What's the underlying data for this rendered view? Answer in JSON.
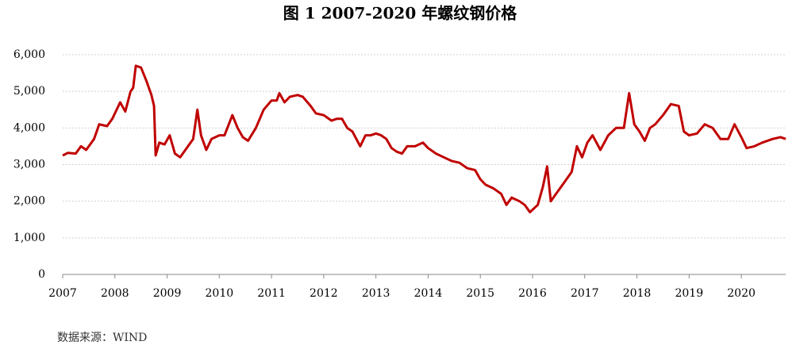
{
  "chart_data": {
    "type": "line",
    "title": "图 1 2007-2020 年螺纹钢价格",
    "source": "数据来源：WIND",
    "x": [
      2007.0,
      2007.1,
      2007.25,
      2007.35,
      2007.45,
      2007.6,
      2007.7,
      2007.85,
      2007.95,
      2008.0,
      2008.1,
      2008.2,
      2008.3,
      2008.35,
      2008.4,
      2008.5,
      2008.6,
      2008.7,
      2008.75,
      2008.78,
      2008.85,
      2008.95,
      2009.05,
      2009.15,
      2009.25,
      2009.35,
      2009.5,
      2009.58,
      2009.65,
      2009.75,
      2009.85,
      2010.0,
      2010.1,
      2010.25,
      2010.35,
      2010.45,
      2010.55,
      2010.7,
      2010.85,
      2011.0,
      2011.1,
      2011.15,
      2011.25,
      2011.35,
      2011.5,
      2011.6,
      2011.75,
      2011.85,
      2012.0,
      2012.15,
      2012.25,
      2012.35,
      2012.45,
      2012.55,
      2012.7,
      2012.8,
      2012.9,
      2013.0,
      2013.1,
      2013.2,
      2013.3,
      2013.4,
      2013.5,
      2013.6,
      2013.75,
      2013.9,
      2014.0,
      2014.15,
      2014.3,
      2014.45,
      2014.6,
      2014.75,
      2014.9,
      2015.0,
      2015.1,
      2015.25,
      2015.4,
      2015.5,
      2015.6,
      2015.75,
      2015.85,
      2015.95,
      2016.1,
      2016.2,
      2016.28,
      2016.35,
      2016.45,
      2016.6,
      2016.75,
      2016.85,
      2016.95,
      2017.05,
      2017.15,
      2017.3,
      2017.45,
      2017.6,
      2017.75,
      2017.85,
      2017.95,
      2018.05,
      2018.15,
      2018.25,
      2018.35,
      2018.5,
      2018.65,
      2018.8,
      2018.9,
      2019.0,
      2019.15,
      2019.3,
      2019.45,
      2019.6,
      2019.75,
      2019.87,
      2020.0,
      2020.1,
      2020.25,
      2020.4,
      2020.6,
      2020.75,
      2020.85
    ],
    "series": [
      {
        "name": "螺纹钢价格",
        "color": "#c00000",
        "values": [
          3250,
          3320,
          3300,
          3500,
          3400,
          3700,
          4100,
          4050,
          4250,
          4400,
          4700,
          4450,
          5000,
          5100,
          5700,
          5650,
          5300,
          4900,
          4600,
          3250,
          3600,
          3550,
          3800,
          3300,
          3200,
          3400,
          3700,
          4500,
          3800,
          3400,
          3700,
          3800,
          3800,
          4350,
          4000,
          3750,
          3650,
          4000,
          4500,
          4750,
          4750,
          4950,
          4700,
          4850,
          4900,
          4850,
          4600,
          4400,
          4350,
          4200,
          4250,
          4250,
          4000,
          3900,
          3500,
          3800,
          3800,
          3850,
          3800,
          3700,
          3450,
          3350,
          3300,
          3500,
          3500,
          3600,
          3450,
          3300,
          3200,
          3100,
          3050,
          2900,
          2850,
          2600,
          2450,
          2350,
          2200,
          1900,
          2100,
          2000,
          1900,
          1700,
          1900,
          2400,
          2950,
          2000,
          2200,
          2500,
          2800,
          3500,
          3200,
          3600,
          3800,
          3400,
          3800,
          4000,
          4000,
          4950,
          4100,
          3900,
          3650,
          4000,
          4100,
          4350,
          4650,
          4600,
          3900,
          3800,
          3850,
          4100,
          4000,
          3700,
          3700,
          4100,
          3750,
          3450,
          3500,
          3600,
          3700,
          3750,
          3700
        ]
      }
    ],
    "xlim": [
      2007,
      2020.85
    ],
    "xticks": [
      2007,
      2008,
      2009,
      2010,
      2011,
      2012,
      2013,
      2014,
      2015,
      2016,
      2017,
      2018,
      2019,
      2020
    ],
    "ylim": [
      0,
      6000
    ],
    "yticks": [
      0,
      {
        "value": 1000,
        "label": "1,000"
      },
      {
        "value": 2000,
        "label": "2,000"
      },
      {
        "value": 3000,
        "label": "3,000"
      },
      {
        "value": 4000,
        "label": "4,000"
      },
      {
        "value": 5000,
        "label": "5,000"
      },
      {
        "value": 6000,
        "label": "6,000"
      }
    ],
    "grid": true
  }
}
